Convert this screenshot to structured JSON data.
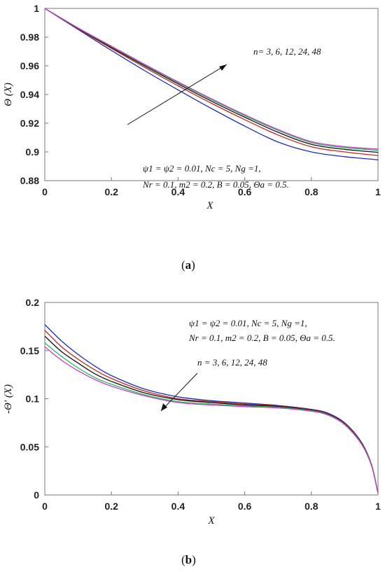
{
  "panel_a_label": "a",
  "panel_b_label": "b",
  "chart_data": [
    {
      "type": "line",
      "panel": "a",
      "xlabel": "X",
      "ylabel": "Θ (X)",
      "xlim": [
        0,
        1
      ],
      "ylim": [
        0.88,
        1
      ],
      "xticks": [
        "0",
        "0.2",
        "0.4",
        "0.6",
        "0.8",
        "1"
      ],
      "yticks": [
        "0.88",
        "0.9",
        "0.92",
        "0.94",
        "0.96",
        "0.98",
        "1"
      ],
      "annotation_arrow": "n= 3, 6, 12, 24, 48",
      "parameters_line1": "ψ1 = ψ2 = 0.01, Nc = 5, Ng =1,",
      "parameters_line2": "Nr = 0.1, m2 = 0.2, B = 0.05,  Θa = 0.5.",
      "x": [
        0,
        0.1,
        0.2,
        0.3,
        0.4,
        0.5,
        0.6,
        0.7,
        0.8,
        0.9,
        1.0
      ],
      "series": [
        {
          "color": "#1f2fb5",
          "values": [
            1.0,
            0.9853,
            0.9707,
            0.9566,
            0.9432,
            0.9303,
            0.918,
            0.9069,
            0.9,
            0.8967,
            0.8945
          ]
        },
        {
          "color": "#c0281c",
          "values": [
            1.0,
            0.9858,
            0.9721,
            0.9589,
            0.9461,
            0.9339,
            0.9225,
            0.9118,
            0.9036,
            0.9,
            0.8975
          ]
        },
        {
          "color": "#111111",
          "values": [
            1.0,
            0.9861,
            0.9728,
            0.9599,
            0.9474,
            0.9354,
            0.9242,
            0.9137,
            0.9053,
            0.9018,
            0.8997
          ]
        },
        {
          "color": "#2bb35a",
          "values": [
            1.0,
            0.9863,
            0.9734,
            0.9606,
            0.9483,
            0.9365,
            0.9253,
            0.915,
            0.9065,
            0.903,
            0.9012
          ]
        },
        {
          "color": "#c23fc8",
          "values": [
            1.0,
            0.9864,
            0.9737,
            0.961,
            0.9488,
            0.937,
            0.9259,
            0.9156,
            0.9072,
            0.9037,
            0.902
          ]
        }
      ]
    },
    {
      "type": "line",
      "panel": "b",
      "xlabel": "X",
      "ylabel": "-Θ' (X)",
      "xlim": [
        0,
        1
      ],
      "ylim": [
        0,
        0.2
      ],
      "xticks": [
        "0",
        "0.2",
        "0.4",
        "0.6",
        "0.8",
        "1"
      ],
      "yticks": [
        "0",
        "0.05",
        "0.1",
        "0.15",
        "0.2"
      ],
      "annotation_arrow": "n = 3, 6, 12, 24, 48",
      "parameters_line1": "ψ1 = ψ2 = 0.01, Nc = 5, Ng =1,",
      "parameters_line2": "Nr = 0.1, m2 = 0.2, B = 0.05,  Θa = 0.5.",
      "x": [
        0,
        0.05,
        0.1,
        0.15,
        0.2,
        0.3,
        0.4,
        0.5,
        0.6,
        0.7,
        0.8,
        0.85,
        0.9,
        0.95,
        0.98,
        1.0
      ],
      "series": [
        {
          "color": "#1f2fb5",
          "values": [
            0.177,
            0.16,
            0.146,
            0.134,
            0.124,
            0.11,
            0.102,
            0.098,
            0.0955,
            0.093,
            0.089,
            0.085,
            0.075,
            0.055,
            0.032,
            0.002
          ]
        },
        {
          "color": "#c0281c",
          "values": [
            0.171,
            0.154,
            0.141,
            0.13,
            0.121,
            0.108,
            0.1,
            0.097,
            0.0945,
            0.0925,
            0.0885,
            0.0845,
            0.0745,
            0.0545,
            0.0318,
            0.002
          ]
        },
        {
          "color": "#111111",
          "values": [
            0.165,
            0.149,
            0.137,
            0.126,
            0.118,
            0.106,
            0.099,
            0.096,
            0.0935,
            0.092,
            0.088,
            0.084,
            0.074,
            0.054,
            0.0315,
            0.002
          ]
        },
        {
          "color": "#2bb35a",
          "values": [
            0.158,
            0.144,
            0.132,
            0.122,
            0.115,
            0.104,
            0.097,
            0.0945,
            0.0925,
            0.0912,
            0.0875,
            0.0835,
            0.0735,
            0.0535,
            0.0312,
            0.002
          ]
        },
        {
          "color": "#c23fc8",
          "values": [
            0.154,
            0.14,
            0.129,
            0.12,
            0.113,
            0.103,
            0.096,
            0.0935,
            0.0918,
            0.0905,
            0.087,
            0.083,
            0.073,
            0.053,
            0.031,
            0.002
          ]
        }
      ]
    }
  ]
}
